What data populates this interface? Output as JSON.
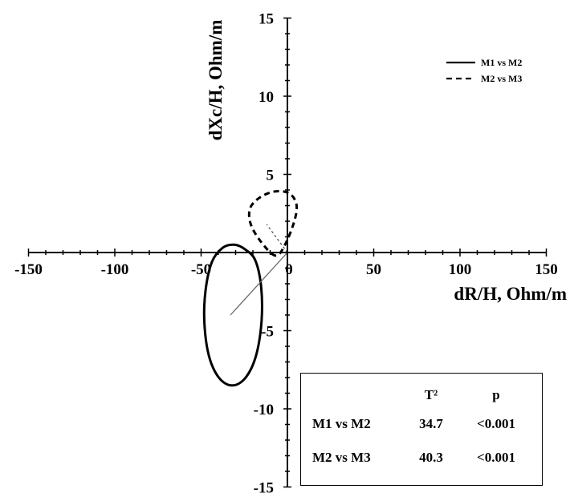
{
  "chart_data": {
    "type": "scatter",
    "xlabel": "dR/H, Ohm/m",
    "ylabel": "dXc/H, Ohm/m",
    "xlim": [
      -150,
      150
    ],
    "ylim": [
      -15,
      15
    ],
    "x_ticks": [
      -150,
      -100,
      -50,
      0,
      50,
      100,
      150
    ],
    "y_ticks": [
      -15,
      -10,
      -5,
      0,
      5,
      10,
      15
    ],
    "grid": false,
    "legend_position": "top-right",
    "series": [
      {
        "name": "M1 vs M2",
        "line_style": "solid",
        "mean_vector": {
          "from": [
            0,
            0
          ],
          "to": [
            -33,
            -4
          ]
        },
        "ellipse_outline": [
          [
            -24.5,
            0.2
          ],
          [
            -18.6,
            -0.5
          ],
          [
            -15.2,
            -2.2
          ],
          [
            -15.0,
            -4.4
          ],
          [
            -18.2,
            -6.6
          ],
          [
            -24.2,
            -8.0
          ],
          [
            -32.0,
            -8.5
          ],
          [
            -39.7,
            -8.0
          ],
          [
            -45.5,
            -6.6
          ],
          [
            -48.1,
            -4.5
          ],
          [
            -47.4,
            -2.4
          ],
          [
            -43.7,
            -0.6
          ],
          [
            -37.5,
            0.3
          ],
          [
            -30.8,
            0.5
          ],
          [
            -24.5,
            0.2
          ]
        ]
      },
      {
        "name": "M2 vs M3",
        "line_style": "dashed",
        "mean_vector": {
          "from": [
            0,
            0
          ],
          "to": [
            -12,
            1.8
          ]
        },
        "ellipse_outline": [
          [
            -6.9,
            -0.2
          ],
          [
            -15.4,
            0.7
          ],
          [
            -21.2,
            1.8
          ],
          [
            -21.7,
            2.8
          ],
          [
            -16.3,
            3.5
          ],
          [
            -7.5,
            3.9
          ],
          [
            0.8,
            3.8
          ],
          [
            5.2,
            3.1
          ],
          [
            4.0,
            2.0
          ],
          [
            -1.4,
            0.5
          ],
          [
            -6.9,
            -0.2
          ]
        ]
      }
    ],
    "stats_table": {
      "headers": [
        "",
        "T²",
        "p"
      ],
      "rows": [
        [
          "M1 vs M2",
          "34.7",
          "<0.001"
        ],
        [
          "M2 vs M3",
          "40.3",
          "<0.001"
        ]
      ]
    }
  }
}
